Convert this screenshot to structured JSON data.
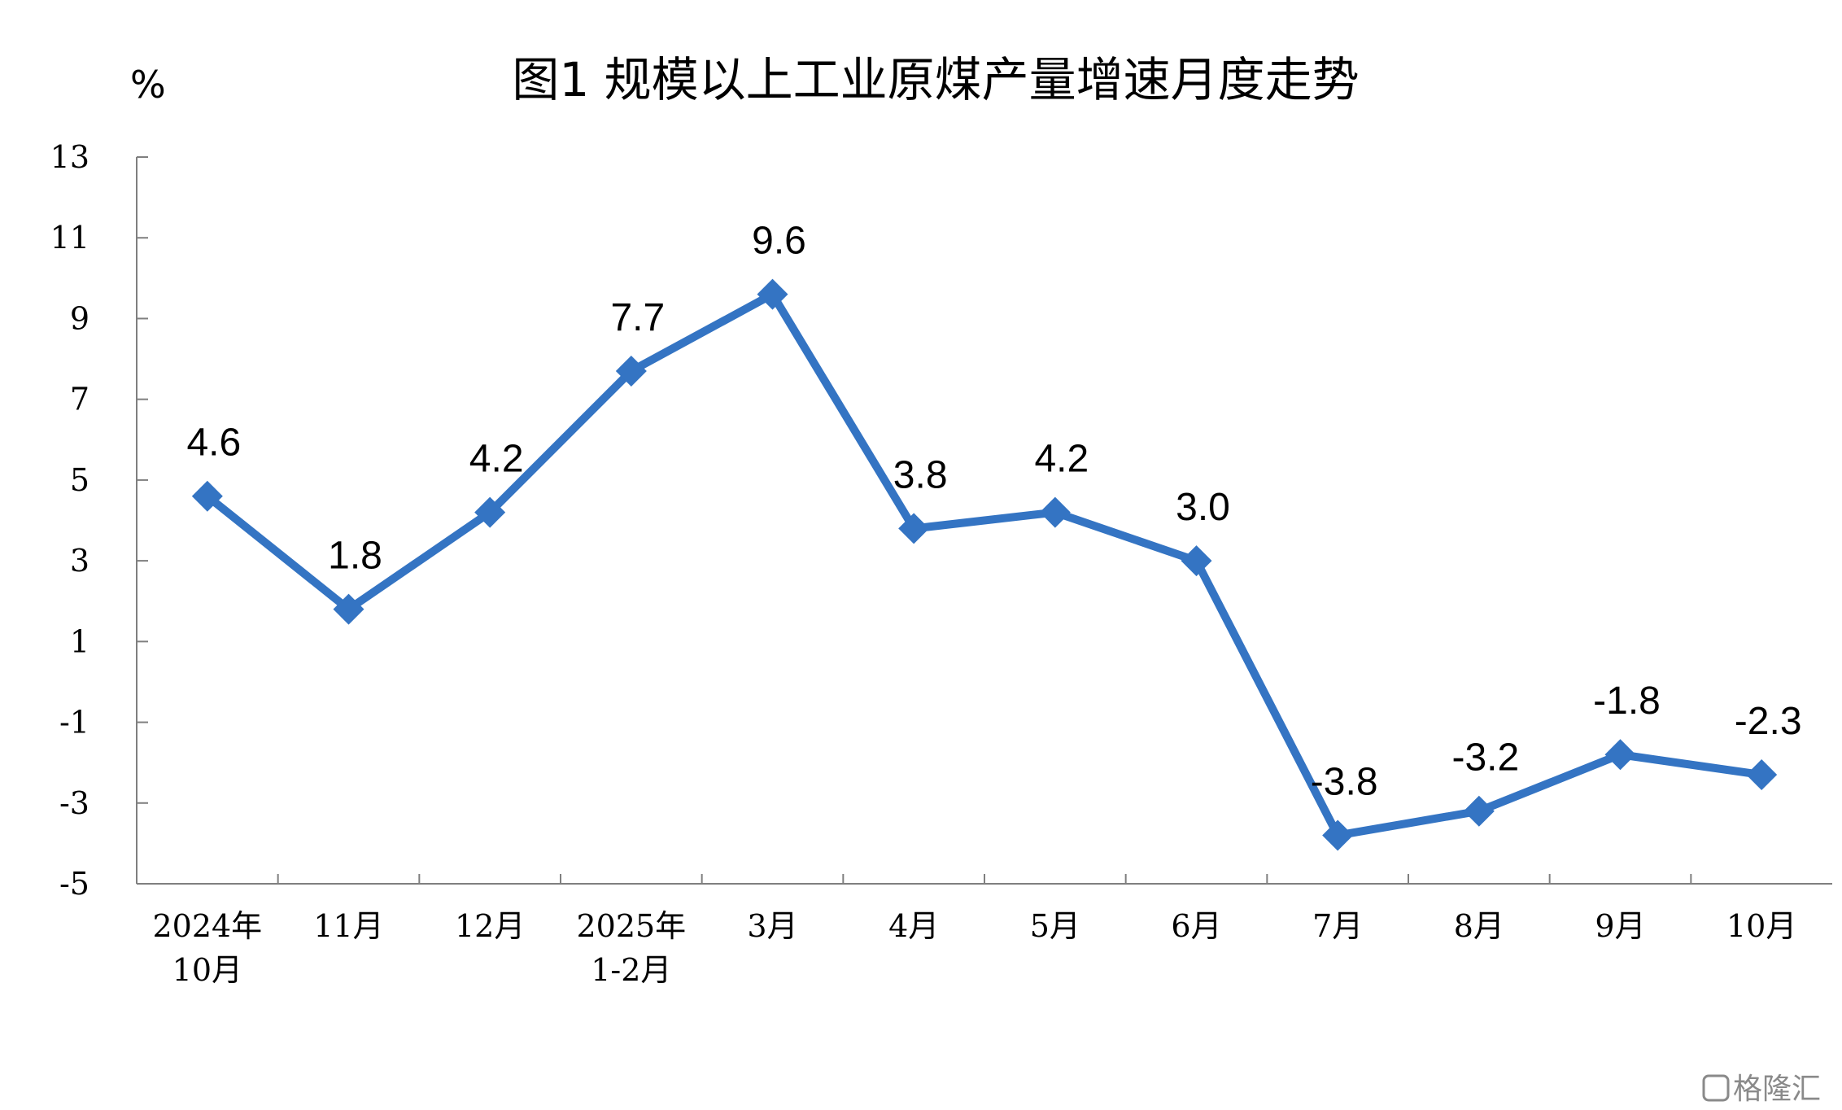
{
  "watermark": "格隆汇",
  "chart_data": {
    "type": "line",
    "title": "图1  规模以上工业原煤产量增速月度走势",
    "ylabel": "%",
    "xlabel": "",
    "ylim": [
      -5,
      13
    ],
    "yticks": [
      13,
      11,
      9,
      7,
      5,
      3,
      1,
      -1,
      -3,
      -5
    ],
    "categories": [
      [
        "2024年",
        "10月"
      ],
      [
        "11月"
      ],
      [
        "12月"
      ],
      [
        "2025年",
        "1-2月"
      ],
      [
        "3月"
      ],
      [
        "4月"
      ],
      [
        "5月"
      ],
      [
        "6月"
      ],
      [
        "7月"
      ],
      [
        "8月"
      ],
      [
        "9月"
      ],
      [
        "10月"
      ]
    ],
    "series": [
      {
        "values": [
          4.6,
          1.8,
          4.2,
          7.7,
          9.6,
          3.8,
          4.2,
          3.0,
          -3.8,
          -3.2,
          -1.8,
          -2.3
        ],
        "labels": [
          "4.6",
          "1.8",
          "4.2",
          "7.7",
          "9.6",
          "3.8",
          "4.2",
          "3.0",
          "-3.8",
          "-3.2",
          "-1.8",
          "-2.3"
        ],
        "color": "#3474c3"
      }
    ],
    "grid": false,
    "legend": "none"
  }
}
